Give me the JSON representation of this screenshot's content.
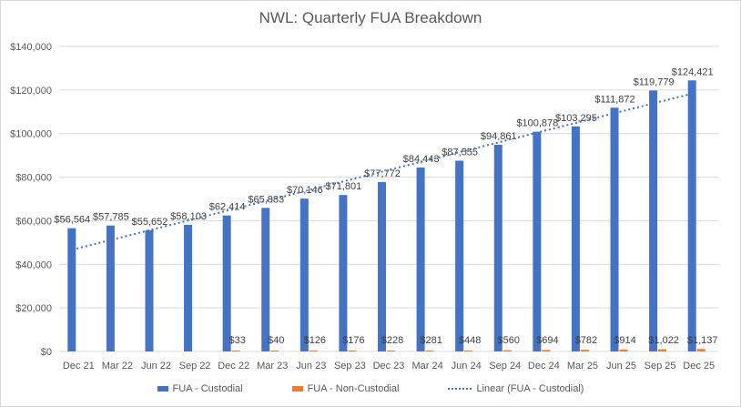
{
  "chart_data": {
    "type": "bar",
    "title": "NWL: Quarterly FUA Breakdown",
    "xlabel": "",
    "ylabel": "",
    "ylim": [
      0,
      140000
    ],
    "yticks": [
      0,
      20000,
      40000,
      60000,
      80000,
      100000,
      120000,
      140000
    ],
    "ytick_labels": [
      "$0",
      "$20,000",
      "$40,000",
      "$60,000",
      "$80,000",
      "$100,000",
      "$120,000",
      "$140,000"
    ],
    "categories": [
      "Dec 21",
      "Mar 22",
      "Jun 22",
      "Sep 22",
      "Dec 22",
      "Mar 23",
      "Jun 23",
      "Sep 23",
      "Dec 23",
      "Mar 24",
      "Jun 24",
      "Sep 24",
      "Dec 24",
      "Mar 25",
      "Jun 25",
      "Sep 25",
      "Dec 25"
    ],
    "series": [
      {
        "name": "FUA - Custodial",
        "color": "#4472c4",
        "values": [
          56564,
          57785,
          55652,
          58103,
          62414,
          65883,
          70146,
          71801,
          77772,
          84443,
          87555,
          94861,
          100878,
          103295,
          111872,
          119779,
          124421
        ],
        "labels": [
          "$56,564",
          "$57,785",
          "$55,652",
          "$58,103",
          "$62,414",
          "$65,883",
          "$70,146",
          "$71,801",
          "$77,772",
          "$84,443",
          "$87,555",
          "$94,861",
          "$100,878",
          "$103,295",
          "$111,872",
          "$119,779",
          "$124,421"
        ]
      },
      {
        "name": "FUA - Non-Custodial",
        "color": "#ed7d31",
        "values": [
          null,
          null,
          null,
          null,
          33,
          40,
          126,
          176,
          228,
          281,
          448,
          560,
          694,
          782,
          914,
          1022,
          1137
        ],
        "labels": [
          "",
          "",
          "",
          "",
          "$33",
          "$40",
          "$126",
          "$176",
          "$228",
          "$281",
          "$448",
          "$560",
          "$694",
          "$782",
          "$914",
          "$1,022",
          "$1,137"
        ]
      }
    ],
    "trendline": {
      "name": "Linear (FUA - Custodial)",
      "of_series": "FUA - Custodial",
      "style": "dotted",
      "color": "#4472c4"
    },
    "legend_position": "bottom",
    "grid": true
  }
}
